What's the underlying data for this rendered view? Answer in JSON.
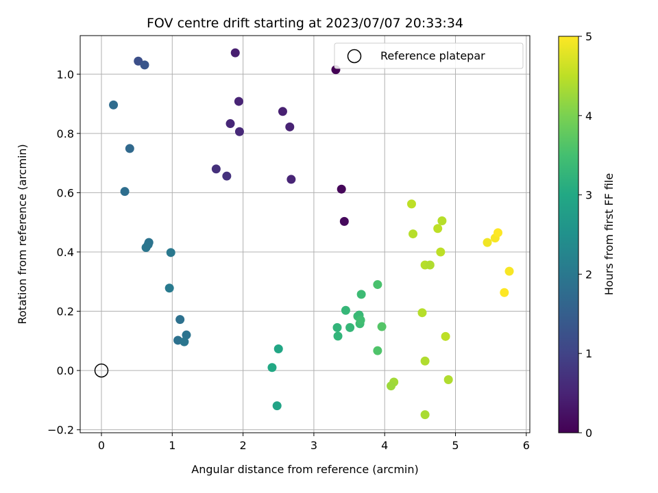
{
  "chart_data": {
    "type": "scatter",
    "title": "FOV centre drift starting at 2023/07/07 20:33:34",
    "xlabel": "Angular distance from reference (arcmin)",
    "ylabel": "Rotation from reference (arcmin)",
    "xlim": [
      -0.3,
      6.05
    ],
    "ylim": [
      -0.21,
      1.13
    ],
    "xticks": [
      0,
      1,
      2,
      3,
      4,
      5,
      6
    ],
    "xtick_labels": [
      "0",
      "1",
      "2",
      "3",
      "4",
      "5",
      "6"
    ],
    "yticks": [
      -0.2,
      0.0,
      0.2,
      0.4,
      0.6,
      0.8,
      1.0
    ],
    "ytick_labels": [
      "−0.2",
      "0.0",
      "0.2",
      "0.4",
      "0.6",
      "0.8",
      "1.0"
    ],
    "grid": true,
    "legend": {
      "placement": "top-right",
      "entries": [
        {
          "label": "Reference platepar",
          "marker": "open-circle"
        }
      ]
    },
    "colorbar": {
      "label": "Hours from first FF file",
      "colormap": "viridis",
      "range": [
        0,
        5
      ],
      "ticks": [
        0,
        1,
        2,
        3,
        4,
        5
      ],
      "tick_labels": [
        "0",
        "1",
        "2",
        "3",
        "4",
        "5"
      ]
    },
    "reference_point": {
      "x": 0,
      "y": 0
    },
    "series": [
      {
        "points": [
          {
            "x": 3.31,
            "y": 1.015,
            "c": 0.02
          },
          {
            "x": 3.39,
            "y": 0.612,
            "c": 0.08
          },
          {
            "x": 3.43,
            "y": 0.503,
            "c": 0.12
          },
          {
            "x": 1.89,
            "y": 1.072,
            "c": 0.42
          },
          {
            "x": 1.94,
            "y": 0.908,
            "c": 0.5
          },
          {
            "x": 1.82,
            "y": 0.833,
            "c": 0.55
          },
          {
            "x": 1.95,
            "y": 0.806,
            "c": 0.58
          },
          {
            "x": 2.56,
            "y": 0.874,
            "c": 0.45
          },
          {
            "x": 2.66,
            "y": 0.822,
            "c": 0.48
          },
          {
            "x": 2.68,
            "y": 0.645,
            "c": 0.52
          },
          {
            "x": 1.62,
            "y": 0.68,
            "c": 0.68
          },
          {
            "x": 1.77,
            "y": 0.656,
            "c": 0.72
          },
          {
            "x": 0.52,
            "y": 1.044,
            "c": 1.2
          },
          {
            "x": 0.61,
            "y": 1.031,
            "c": 1.32
          },
          {
            "x": 0.17,
            "y": 0.896,
            "c": 1.75
          },
          {
            "x": 0.4,
            "y": 0.749,
            "c": 1.7
          },
          {
            "x": 0.33,
            "y": 0.604,
            "c": 1.8
          },
          {
            "x": 0.67,
            "y": 0.432,
            "c": 1.9
          },
          {
            "x": 0.66,
            "y": 0.425,
            "c": 1.92
          },
          {
            "x": 0.63,
            "y": 0.415,
            "c": 1.95
          },
          {
            "x": 0.98,
            "y": 0.398,
            "c": 2.0
          },
          {
            "x": 0.96,
            "y": 0.278,
            "c": 2.05
          },
          {
            "x": 1.11,
            "y": 0.172,
            "c": 1.85
          },
          {
            "x": 1.2,
            "y": 0.12,
            "c": 1.9
          },
          {
            "x": 1.08,
            "y": 0.102,
            "c": 1.85
          },
          {
            "x": 1.17,
            "y": 0.097,
            "c": 1.95
          },
          {
            "x": 2.5,
            "y": 0.073,
            "c": 2.95
          },
          {
            "x": 2.41,
            "y": 0.01,
            "c": 3.0
          },
          {
            "x": 2.48,
            "y": -0.119,
            "c": 2.9
          },
          {
            "x": 3.33,
            "y": 0.145,
            "c": 3.25
          },
          {
            "x": 3.34,
            "y": 0.116,
            "c": 3.25
          },
          {
            "x": 3.45,
            "y": 0.203,
            "c": 3.3
          },
          {
            "x": 3.51,
            "y": 0.145,
            "c": 3.3
          },
          {
            "x": 3.62,
            "y": 0.183,
            "c": 3.4
          },
          {
            "x": 3.64,
            "y": 0.187,
            "c": 3.35
          },
          {
            "x": 3.65,
            "y": 0.158,
            "c": 3.4
          },
          {
            "x": 3.66,
            "y": 0.17,
            "c": 3.45
          },
          {
            "x": 3.67,
            "y": 0.257,
            "c": 3.4
          },
          {
            "x": 3.9,
            "y": 0.29,
            "c": 3.55
          },
          {
            "x": 3.9,
            "y": 0.067,
            "c": 3.6
          },
          {
            "x": 3.96,
            "y": 0.148,
            "c": 3.65
          },
          {
            "x": 4.38,
            "y": 0.562,
            "c": 4.5
          },
          {
            "x": 4.4,
            "y": 0.461,
            "c": 4.45
          },
          {
            "x": 4.57,
            "y": 0.356,
            "c": 4.45
          },
          {
            "x": 4.64,
            "y": 0.356,
            "c": 4.4
          },
          {
            "x": 4.75,
            "y": 0.479,
            "c": 4.5
          },
          {
            "x": 4.81,
            "y": 0.505,
            "c": 4.45
          },
          {
            "x": 4.79,
            "y": 0.4,
            "c": 4.5
          },
          {
            "x": 4.53,
            "y": 0.195,
            "c": 4.45
          },
          {
            "x": 4.57,
            "y": 0.032,
            "c": 4.4
          },
          {
            "x": 4.57,
            "y": -0.149,
            "c": 4.35
          },
          {
            "x": 4.13,
            "y": -0.039,
            "c": 4.3
          },
          {
            "x": 4.09,
            "y": -0.052,
            "c": 4.25
          },
          {
            "x": 4.86,
            "y": 0.115,
            "c": 4.5
          },
          {
            "x": 4.9,
            "y": -0.031,
            "c": 4.4
          },
          {
            "x": 5.45,
            "y": 0.432,
            "c": 4.9
          },
          {
            "x": 5.56,
            "y": 0.447,
            "c": 4.95
          },
          {
            "x": 5.6,
            "y": 0.465,
            "c": 5.0
          },
          {
            "x": 5.76,
            "y": 0.335,
            "c": 4.95
          },
          {
            "x": 5.69,
            "y": 0.263,
            "c": 5.0
          }
        ]
      }
    ]
  }
}
